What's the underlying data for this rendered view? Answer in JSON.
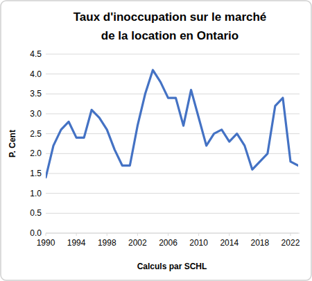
{
  "chart_data": {
    "type": "line",
    "title": "Taux d'inoccupation sur le marché de la location en Ontario",
    "x_label": "Calculs par SCHL",
    "y_label": "P. Cent",
    "x": [
      1990,
      1991,
      1992,
      1993,
      1994,
      1995,
      1996,
      1997,
      1998,
      1999,
      2000,
      2001,
      2002,
      2003,
      2004,
      2005,
      2006,
      2007,
      2008,
      2009,
      2010,
      2011,
      2012,
      2013,
      2014,
      2015,
      2016,
      2017,
      2018,
      2019,
      2020,
      2021,
      2022,
      2023
    ],
    "values": [
      1.4,
      2.2,
      2.6,
      2.8,
      2.4,
      2.4,
      3.1,
      2.9,
      2.6,
      2.1,
      1.7,
      1.7,
      2.7,
      3.5,
      4.1,
      3.8,
      3.4,
      3.4,
      2.7,
      3.6,
      2.9,
      2.2,
      2.5,
      2.6,
      2.3,
      2.5,
      2.2,
      1.6,
      1.8,
      2.0,
      3.2,
      3.4,
      1.8,
      1.7
    ],
    "color": "#4472c4",
    "xlim": [
      1990,
      2023
    ],
    "xticks": [
      1990,
      1994,
      1998,
      2002,
      2006,
      2010,
      2014,
      2018,
      2022
    ],
    "ylim": [
      0,
      4.5
    ],
    "yticks": [
      {
        "value": 0,
        "label": "0.0"
      },
      {
        "value": 0.5,
        "label": "0.5"
      },
      {
        "value": 1,
        "label": "1.0"
      },
      {
        "value": 1.5,
        "label": "1.5"
      },
      {
        "value": 2,
        "label": "2.0"
      },
      {
        "value": 2.5,
        "label": "2.5"
      },
      {
        "value": 3,
        "label": "3.0"
      },
      {
        "value": 3.5,
        "label": "3.5"
      },
      {
        "value": 4,
        "label": "4.0"
      },
      {
        "value": 4.5,
        "label": "4.5"
      }
    ],
    "grid": true
  }
}
